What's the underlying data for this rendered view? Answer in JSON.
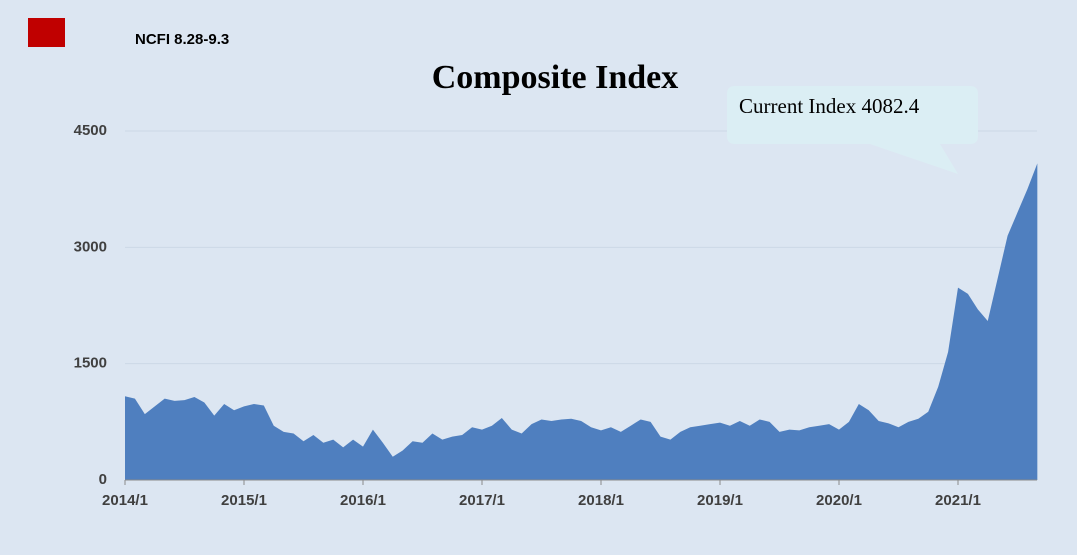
{
  "chart_data": {
    "type": "area",
    "title": "Composite Index",
    "annotation": "Current Index 4082.4",
    "legend_color": "#c00000",
    "x": [
      "2014/1",
      "2014/2",
      "2014/3",
      "2014/4",
      "2014/5",
      "2014/6",
      "2014/7",
      "2014/8",
      "2014/9",
      "2014/10",
      "2014/11",
      "2014/12",
      "2015/1",
      "2015/2",
      "2015/3",
      "2015/4",
      "2015/5",
      "2015/6",
      "2015/7",
      "2015/8",
      "2015/9",
      "2015/10",
      "2015/11",
      "2015/12",
      "2016/1",
      "2016/2",
      "2016/3",
      "2016/4",
      "2016/5",
      "2016/6",
      "2016/7",
      "2016/8",
      "2016/9",
      "2016/10",
      "2016/11",
      "2016/12",
      "2017/1",
      "2017/2",
      "2017/3",
      "2017/4",
      "2017/5",
      "2017/6",
      "2017/7",
      "2017/8",
      "2017/9",
      "2017/10",
      "2017/11",
      "2017/12",
      "2018/1",
      "2018/2",
      "2018/3",
      "2018/4",
      "2018/5",
      "2018/6",
      "2018/7",
      "2018/8",
      "2018/9",
      "2018/10",
      "2018/11",
      "2018/12",
      "2019/1",
      "2019/2",
      "2019/3",
      "2019/4",
      "2019/5",
      "2019/6",
      "2019/7",
      "2019/8",
      "2019/9",
      "2019/10",
      "2019/11",
      "2019/12",
      "2020/1",
      "2020/2",
      "2020/3",
      "2020/4",
      "2020/5",
      "2020/6",
      "2020/7",
      "2020/8",
      "2020/9",
      "2020/10",
      "2020/11",
      "2020/12",
      "2021/1",
      "2021/2",
      "2021/3",
      "2021/4",
      "2021/5",
      "2021/6",
      "2021/7",
      "2021/8",
      "2021/9"
    ],
    "series": [
      {
        "name": "NCFI 8.28-9.3",
        "color": "#4f7fbf",
        "values": [
          1080,
          1050,
          850,
          950,
          1050,
          1020,
          1030,
          1070,
          1000,
          830,
          980,
          900,
          950,
          980,
          960,
          700,
          620,
          600,
          500,
          580,
          480,
          520,
          420,
          520,
          430,
          650,
          480,
          300,
          380,
          500,
          480,
          600,
          520,
          560,
          580,
          680,
          650,
          700,
          800,
          650,
          600,
          720,
          780,
          760,
          780,
          790,
          760,
          680,
          640,
          680,
          620,
          700,
          780,
          750,
          560,
          520,
          620,
          680,
          700,
          720,
          740,
          700,
          760,
          700,
          780,
          750,
          620,
          650,
          640,
          680,
          700,
          720,
          650,
          750,
          980,
          900,
          760,
          730,
          680,
          750,
          790,
          880,
          1200,
          1650,
          2480,
          2400,
          2200,
          2050,
          2600,
          3150,
          3450,
          3750,
          4082.4
        ]
      }
    ],
    "xticks": [
      "2014/1",
      "2015/1",
      "2016/1",
      "2017/1",
      "2018/1",
      "2019/1",
      "2020/1",
      "2021/1"
    ],
    "ylim": [
      0,
      4500
    ],
    "yticks": [
      0,
      1500,
      3000,
      4500
    ],
    "grid": true
  }
}
